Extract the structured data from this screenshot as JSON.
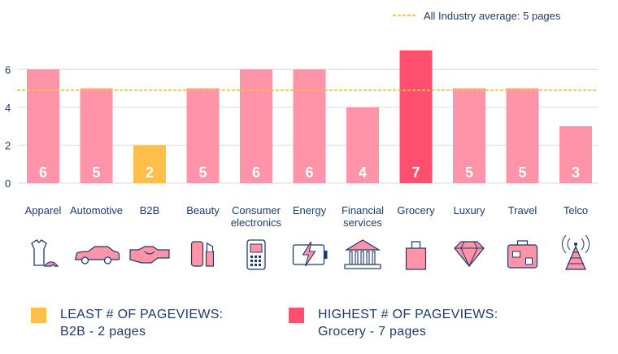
{
  "chart_data": {
    "type": "bar",
    "categories": [
      "Apparel",
      "Automotive",
      "B2B",
      "Beauty",
      "Consumer electronics",
      "Energy",
      "Financial services",
      "Grocery",
      "Luxury",
      "Travel",
      "Telco"
    ],
    "category_lines": [
      [
        "Apparel"
      ],
      [
        "Automotive"
      ],
      [
        "B2B"
      ],
      [
        "Beauty"
      ],
      [
        "Consumer",
        "electronics"
      ],
      [
        "Energy"
      ],
      [
        "Financial",
        "services"
      ],
      [
        "Grocery"
      ],
      [
        "Luxury"
      ],
      [
        "Travel"
      ],
      [
        "Telco"
      ]
    ],
    "values": [
      6,
      5,
      2,
      5,
      6,
      6,
      4,
      7,
      5,
      5,
      3
    ],
    "data_labels": [
      "6",
      "5",
      "2",
      "5",
      "6",
      "6",
      "4",
      "7",
      "5",
      "5",
      "3"
    ],
    "bar_colors": [
      "#ff93a8",
      "#ff93a8",
      "#ffbf4a",
      "#ff93a8",
      "#ff93a8",
      "#ff93a8",
      "#ff93a8",
      "#ff4f6e",
      "#ff93a8",
      "#ff93a8",
      "#ff93a8"
    ],
    "yticks": [
      0,
      2,
      4,
      6
    ],
    "ylim": [
      0,
      7.6
    ],
    "average_line": {
      "value": 4.9,
      "label": "All Industry average: 5 pages",
      "color": "#f5c242"
    },
    "grid": true,
    "legend_placement": "top-right",
    "icons": [
      "dress-heel-icon",
      "car-icon",
      "handshake-icon",
      "cosmetics-icon",
      "phone-icon",
      "battery-icon",
      "bank-icon",
      "shopping-bag-icon",
      "diamond-icon",
      "suitcase-icon",
      "antenna-icon"
    ]
  },
  "callouts": {
    "least": {
      "title": "LEAST # OF PAGEVIEWS:",
      "detail": "B2B - 2 pages",
      "color": "#ffbf4a"
    },
    "highest": {
      "title": "HIGHEST # OF PAGEVIEWS:",
      "detail": "Grocery - 7 pages",
      "color": "#ff4f6e"
    }
  },
  "colors": {
    "axis_text": "#1f3a6b",
    "grid": "#dcdcdc",
    "icon_stroke": "#1f3a6b",
    "icon_accent": "#ff93a8"
  }
}
